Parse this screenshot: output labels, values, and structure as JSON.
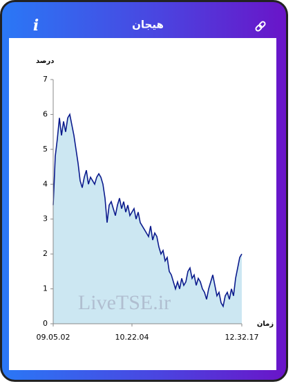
{
  "header": {
    "title": "هیجان"
  },
  "watermark": "LiveTSE.ir",
  "chart_data": {
    "type": "area",
    "y_label": "درصد",
    "x_label": "زمان",
    "color": "#0a1a8c",
    "fill": "#cce7f2",
    "values": [
      3.4,
      4.8,
      5.3,
      5.9,
      5.4,
      5.8,
      5.5,
      5.9,
      6.0,
      5.7,
      5.4,
      5.0,
      4.6,
      4.1,
      3.9,
      4.2,
      4.4,
      4.0,
      4.2,
      4.1,
      4.0,
      4.2,
      4.3,
      4.2,
      4.0,
      3.6,
      2.9,
      3.4,
      3.5,
      3.3,
      3.1,
      3.4,
      3.6,
      3.3,
      3.5,
      3.2,
      3.4,
      3.1,
      3.2,
      3.3,
      3.0,
      3.2,
      2.9,
      2.8,
      2.7,
      2.6,
      2.5,
      2.8,
      2.4,
      2.6,
      2.5,
      2.2,
      2.0,
      2.1,
      1.8,
      1.9,
      1.5,
      1.4,
      1.2,
      1.0,
      1.2,
      1.0,
      1.3,
      1.1,
      1.2,
      1.5,
      1.6,
      1.3,
      1.4,
      1.1,
      1.3,
      1.2,
      1.0,
      0.9,
      0.7,
      1.0,
      1.2,
      1.4,
      1.1,
      0.8,
      0.9,
      0.6,
      0.5,
      0.8,
      0.9,
      0.7,
      1.0,
      0.8,
      1.3,
      1.6,
      1.9,
      2.0
    ],
    "xticks": [
      {
        "value": 0,
        "label": "09.05.02"
      },
      {
        "value": 38,
        "label": "10.22.04"
      },
      {
        "value": 91,
        "label": "12.32.17"
      }
    ],
    "ylim": [
      0,
      7
    ],
    "yticks": [
      0,
      1,
      2,
      3,
      4,
      5,
      6,
      7
    ]
  }
}
